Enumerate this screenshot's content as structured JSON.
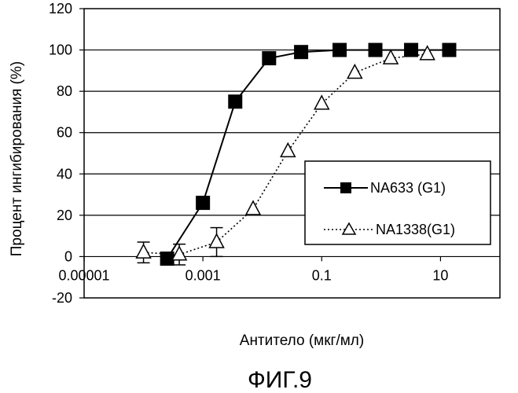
{
  "chart_data": {
    "type": "line",
    "xlabel": "Антитело (мкг/мл)",
    "ylabel": "Процент ингибирования (%)",
    "x_scale": "log",
    "xlim": [
      1e-05,
      100
    ],
    "ylim": [
      -20,
      120
    ],
    "x_ticks": [
      1e-05,
      0.001,
      0.1,
      10
    ],
    "x_tick_labels": [
      "0.00001",
      "0.001",
      "0.1",
      "10"
    ],
    "y_ticks": [
      -20,
      0,
      20,
      40,
      60,
      80,
      100,
      120
    ],
    "y_tick_labels": [
      "-20",
      "0",
      "20",
      "40",
      "60",
      "80",
      "100",
      "120"
    ],
    "grid": "horizontal",
    "legend_position": "lower-right",
    "series": [
      {
        "name": "NA633 (G1)",
        "marker": "filled-square",
        "line": "solid",
        "color": "#000000",
        "x": [
          0.00025,
          0.001,
          0.0035,
          0.013,
          0.045,
          0.2,
          0.8,
          3.2,
          14
        ],
        "y": [
          -1,
          26,
          75,
          96,
          99,
          100,
          100,
          100,
          100
        ],
        "err": [
          0,
          3,
          0,
          0,
          0,
          0,
          0,
          0,
          0
        ]
      },
      {
        "name": "NA1338(G1)",
        "marker": "open-triangle",
        "line": "dotted",
        "color": "#000000",
        "x": [
          0.0001,
          0.0004,
          0.0017,
          0.007,
          0.027,
          0.1,
          0.36,
          1.45,
          6
        ],
        "y": [
          2,
          1,
          7,
          23,
          51,
          74,
          89,
          96,
          98
        ],
        "err": [
          5,
          5,
          7,
          0,
          0,
          0,
          0,
          0,
          0
        ]
      }
    ]
  },
  "caption": "ФИГ.9"
}
